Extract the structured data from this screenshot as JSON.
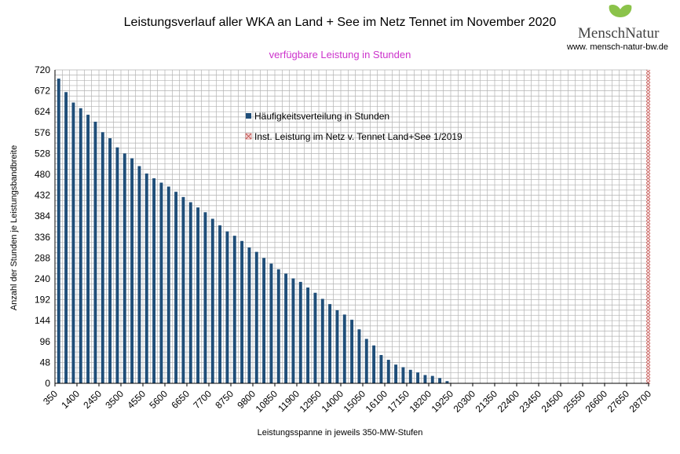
{
  "colors": {
    "bar": "#1f4e79",
    "subtitle": "#cc33cc",
    "grid": "#b3b3b3",
    "inst_marker": "#c0504d",
    "logo_leaf": "#8bc34a"
  },
  "logo": {
    "icon": "ginkgo-leaf-icon",
    "text": "MenschNatur",
    "url": "www. mensch-natur-bw.de"
  },
  "chart_data": {
    "type": "bar",
    "title": "Leistungsverlauf aller WKA an Land + See im Netz Tennet im November 2020",
    "subtitle": "verfügbare Leistung in Stunden",
    "xlabel": "Leistungsspanne in jeweils 350-MW-Stufen",
    "ylabel": "Anzahl der Stunden je Leistungsbandbreite",
    "ylim": [
      0,
      720
    ],
    "yticks": [
      0,
      48,
      96,
      144,
      192,
      240,
      288,
      336,
      384,
      432,
      480,
      528,
      576,
      624,
      672,
      720
    ],
    "x_start": 350,
    "x_step": 350,
    "x_tick_labels": [
      "350",
      "1400",
      "2450",
      "3500",
      "4550",
      "5600",
      "6650",
      "7700",
      "8750",
      "9800",
      "10850",
      "11900",
      "12950",
      "14000",
      "15050",
      "16100",
      "17150",
      "18200",
      "19250",
      "20300",
      "21350",
      "22400",
      "23450",
      "24500",
      "25550",
      "26600",
      "27650",
      "28700"
    ],
    "grid": true,
    "legend_position": "top-center",
    "series": [
      {
        "name": "Häufigkeitsverteilung in Stunden",
        "values": [
          700,
          669,
          645,
          632,
          617,
          601,
          577,
          563,
          542,
          528,
          517,
          499,
          482,
          471,
          461,
          452,
          440,
          428,
          416,
          404,
          393,
          378,
          363,
          349,
          339,
          327,
          312,
          302,
          288,
          275,
          262,
          252,
          241,
          233,
          220,
          208,
          194,
          182,
          168,
          158,
          146,
          124,
          102,
          87,
          65,
          54,
          43,
          37,
          31,
          25,
          19,
          17,
          12,
          5
        ]
      },
      {
        "name": "Inst. Leistung im Netz v. Tennet  Land+See 1/2019",
        "marker_x": 28700,
        "marker_height": 720
      }
    ]
  }
}
